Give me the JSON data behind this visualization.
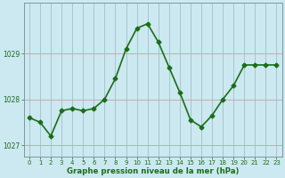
{
  "x": [
    0,
    1,
    2,
    3,
    4,
    5,
    6,
    7,
    8,
    9,
    10,
    11,
    12,
    13,
    14,
    15,
    16,
    17,
    18,
    19,
    20,
    21,
    22,
    23
  ],
  "y": [
    1027.6,
    1027.5,
    1027.2,
    1027.75,
    1027.8,
    1027.75,
    1027.8,
    1028.0,
    1028.45,
    1029.1,
    1029.55,
    1029.65,
    1029.25,
    1028.7,
    1028.15,
    1027.55,
    1027.4,
    1027.65,
    1028.0,
    1028.3,
    1028.75,
    1028.75,
    1028.75,
    1028.75
  ],
  "line_color": "#1a6e1a",
  "marker": "D",
  "markersize": 2.5,
  "bg_color": "#cce8f0",
  "hgrid_color": "#c8a0a0",
  "vgrid_color": "#a0c0c8",
  "xlabel": "Graphe pression niveau de la mer (hPa)",
  "xlabel_color": "#1a6e1a",
  "tick_color": "#1a6e1a",
  "ylim": [
    1026.75,
    1030.1
  ],
  "yticks": [
    1027,
    1028,
    1029
  ],
  "xlim": [
    -0.5,
    23.5
  ],
  "xticks": [
    0,
    1,
    2,
    3,
    4,
    5,
    6,
    7,
    8,
    9,
    10,
    11,
    12,
    13,
    14,
    15,
    16,
    17,
    18,
    19,
    20,
    21,
    22,
    23
  ],
  "border_color": "#7a9a9a",
  "linewidth": 1.2
}
